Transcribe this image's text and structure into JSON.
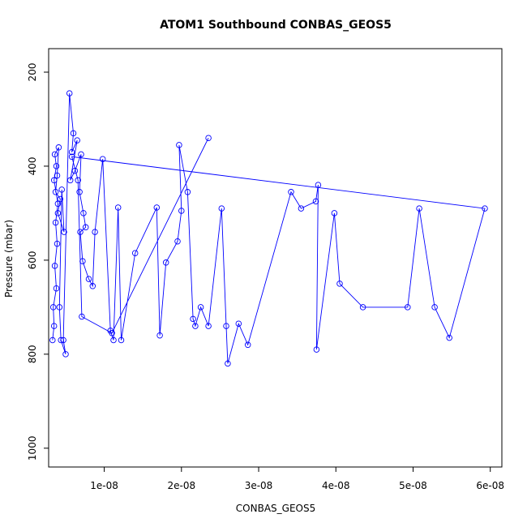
{
  "chart_data": {
    "type": "line",
    "title": "ATOM1 Southbound CONBAS_GEOS5",
    "xlabel": "CONBAS_GEOS5",
    "ylabel": "Pressure (mbar)",
    "xlim": [
      2.8e-09,
      6.15e-08
    ],
    "ylim": [
      1040,
      150
    ],
    "y_reversed": true,
    "grid": false,
    "series_color": "#0000ff",
    "marker": "open-circle",
    "x_ticks": [
      {
        "value": 1e-08,
        "label": "1e-08"
      },
      {
        "value": 2e-08,
        "label": "2e-08"
      },
      {
        "value": 3e-08,
        "label": "3e-08"
      },
      {
        "value": 4e-08,
        "label": "4e-08"
      },
      {
        "value": 5e-08,
        "label": "5e-08"
      },
      {
        "value": 6e-08,
        "label": "6e-08"
      }
    ],
    "y_ticks": [
      {
        "value": 200,
        "label": "200"
      },
      {
        "value": 400,
        "label": "400"
      },
      {
        "value": 600,
        "label": "600"
      },
      {
        "value": 800,
        "label": "800"
      },
      {
        "value": 1000,
        "label": "1000"
      }
    ],
    "x": [
      3.3e-09,
      3.5e-09,
      3.4e-09,
      3.8e-09,
      3.6e-09,
      3.9e-09,
      3.7e-09,
      4e-09,
      3.5e-09,
      3.8e-09,
      3.6e-09,
      4.1e-09,
      3.9e-09,
      3.7e-09,
      4.3e-09,
      4e-09,
      4.8e-09,
      4.5e-09,
      4.2e-09,
      4.4e-09,
      5e-09,
      4.7e-09,
      5.5e-09,
      6e-09,
      5.8e-09,
      6.5e-09,
      5.6e-09,
      6.2e-09,
      7e-09,
      6.8e-09,
      7.3e-09,
      7.6e-09,
      6.9e-09,
      7.2e-09,
      8e-09,
      8.5e-09,
      8.8e-09,
      9.8e-09,
      1.08e-08,
      1.12e-08,
      1.18e-08,
      1.22e-08,
      1.4e-08,
      1.68e-08,
      1.72e-08,
      1.8e-08,
      1.95e-08,
      2e-08,
      1.97e-08,
      2.08e-08,
      2.15e-08,
      2.18e-08,
      2.25e-08,
      2.35e-08,
      2.52e-08,
      2.58e-08,
      2.6e-08,
      2.74e-08,
      2.86e-08,
      3.42e-08,
      3.55e-08,
      3.74e-08,
      3.77e-08,
      3.75e-08,
      3.98e-08,
      4.05e-08,
      4.35e-08,
      4.93e-08,
      5.08e-08,
      5.28e-08,
      5.47e-08,
      5.93e-08,
      5.8e-09,
      6.6e-09,
      7.1e-09,
      1.1e-08,
      2.35e-08
    ],
    "y": [
      770,
      740,
      700,
      660,
      612,
      565,
      520,
      480,
      430,
      400,
      375,
      360,
      420,
      455,
      470,
      500,
      540,
      450,
      700,
      770,
      800,
      770,
      245,
      330,
      370,
      345,
      430,
      410,
      375,
      455,
      500,
      530,
      540,
      602,
      640,
      655,
      540,
      385,
      750,
      770,
      488,
      770,
      585,
      488,
      760,
      605,
      560,
      495,
      355,
      455,
      725,
      740,
      700,
      740,
      490,
      740,
      820,
      735,
      780,
      455,
      490,
      475,
      440,
      790,
      500,
      650,
      700,
      700,
      490,
      700,
      765,
      490,
      380,
      430,
      720,
      755,
      340
    ]
  }
}
